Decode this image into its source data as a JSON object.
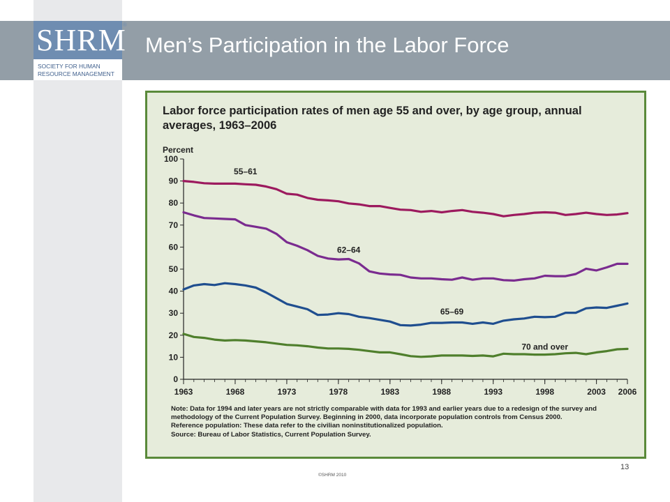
{
  "header": {
    "logo_mark": "SHRM",
    "logo_registered": "®",
    "logo_line1": "SOCIETY FOR HUMAN",
    "logo_line2": "RESOURCE MANAGEMENT",
    "title": "Men’s Participation in the Labor Force"
  },
  "colors": {
    "header_band": "#939ea7",
    "logo_blue": "#6f8db1",
    "chart_bg": "#e6ecdb",
    "chart_border": "#5a8a3a"
  },
  "footer": {
    "page_number": "13",
    "copyright": "©SHRM 2010"
  },
  "notes": {
    "line1": "Note: Data for 1994 and later years are not strictly comparable with data for 1993 and earlier years due to a redesign of the survey and",
    "line2": "methodology of the Current Population Survey. Beginning in 2000, data incorporate population controls from Census 2000.",
    "line3": "Reference population: These data refer to the civilian noninstitutionalized population.",
    "line4": "Source: Bureau of Labor Statistics, Current Population Survey."
  },
  "chart_data": {
    "type": "line",
    "title": "Labor force participation rates of men age 55 and over, by age group, annual averages, 1963–2006",
    "ylabel": "Percent",
    "xlabel": "",
    "ylim": [
      0,
      100
    ],
    "xlim": [
      1963,
      2006
    ],
    "yticks": [
      0,
      10,
      20,
      30,
      40,
      50,
      60,
      70,
      80,
      90,
      100
    ],
    "xticks": [
      "1963",
      "1968",
      "1973",
      "1978",
      "1983",
      "1988",
      "1993",
      "1998",
      "2003",
      "2006"
    ],
    "grid": false,
    "legend": "inline labels",
    "x": [
      1963,
      1964,
      1965,
      1966,
      1967,
      1968,
      1969,
      1970,
      1971,
      1972,
      1973,
      1974,
      1975,
      1976,
      1977,
      1978,
      1979,
      1980,
      1981,
      1982,
      1983,
      1984,
      1985,
      1986,
      1987,
      1988,
      1989,
      1990,
      1991,
      1992,
      1993,
      1994,
      1995,
      1996,
      1997,
      1998,
      1999,
      2000,
      2001,
      2002,
      2003,
      2004,
      2005,
      2006
    ],
    "series": [
      {
        "name": "55–61",
        "color": "#9c1a5e",
        "values": [
          90,
          89.6,
          89,
          88.8,
          88.8,
          88.8,
          88.5,
          88.3,
          87.5,
          86.3,
          84.2,
          83.8,
          82.3,
          81.5,
          81.2,
          80.8,
          79.8,
          79.4,
          78.6,
          78.6,
          77.8,
          77,
          76.8,
          76,
          76.4,
          75.8,
          76.4,
          76.8,
          76,
          75.6,
          75,
          74,
          74.6,
          75,
          75.6,
          75.8,
          75.6,
          74.6,
          75,
          75.6,
          75,
          74.6,
          74.8,
          75.4
        ]
      },
      {
        "name": "62–64",
        "color": "#7a2b8f",
        "values": [
          75.8,
          74.4,
          73.2,
          73,
          72.8,
          72.6,
          70,
          69.2,
          68.4,
          66,
          62.2,
          60.6,
          58.6,
          56,
          54.8,
          54.4,
          54.6,
          52.6,
          49,
          48,
          47.6,
          47.4,
          46.2,
          45.8,
          45.8,
          45.4,
          45.2,
          46.2,
          45.2,
          45.8,
          45.8,
          45,
          44.8,
          45.4,
          45.8,
          47,
          46.8,
          46.8,
          47.8,
          50.2,
          49.4,
          50.8,
          52.4,
          52.4
        ]
      },
      {
        "name": "65–69",
        "color": "#1f4e8f",
        "values": [
          40.8,
          42.6,
          43.2,
          42.8,
          43.6,
          43.2,
          42.6,
          41.6,
          39.4,
          36.8,
          34.2,
          33,
          31.8,
          29.2,
          29.4,
          30,
          29.6,
          28.4,
          27.8,
          27,
          26.2,
          24.6,
          24.4,
          24.8,
          25.6,
          25.6,
          25.8,
          25.8,
          25.2,
          25.8,
          25.2,
          26.6,
          27.2,
          27.6,
          28.4,
          28.2,
          28.4,
          30.2,
          30.2,
          32.2,
          32.6,
          32.4,
          33.4,
          34.4
        ]
      },
      {
        "name": "70 and over",
        "color": "#4f7f2c",
        "values": [
          20.6,
          19.2,
          18.8,
          18,
          17.6,
          17.8,
          17.6,
          17.2,
          16.8,
          16.2,
          15.6,
          15.4,
          15,
          14.4,
          14,
          14,
          13.8,
          13.4,
          12.8,
          12.2,
          12.2,
          11.4,
          10.5,
          10.2,
          10.4,
          10.8,
          10.8,
          10.8,
          10.6,
          10.8,
          10.4,
          11.6,
          11.4,
          11.4,
          11.2,
          11.2,
          11.4,
          11.8,
          12,
          11.4,
          12.2,
          12.8,
          13.6,
          13.8
        ]
      }
    ],
    "labels": [
      "55–61",
      "62–64",
      "65–69",
      "70 and over"
    ]
  }
}
